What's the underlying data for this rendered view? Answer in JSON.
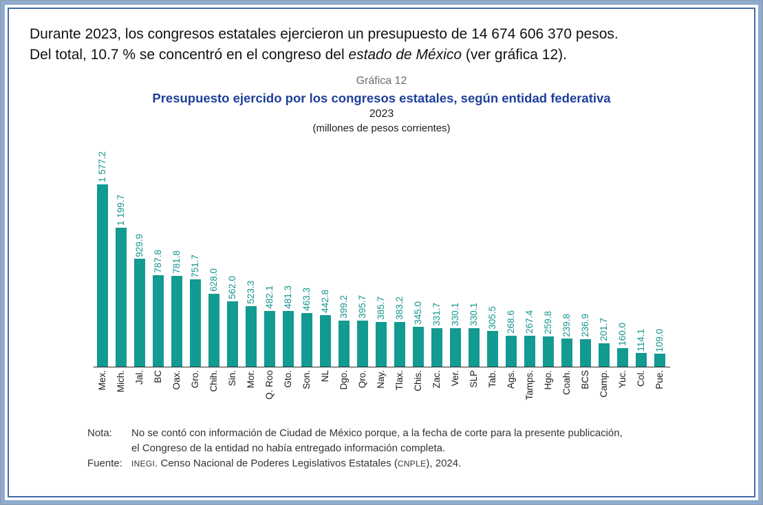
{
  "colors": {
    "bar": "#139a91",
    "value_label": "#13958c",
    "title_blue": "#1f3f99",
    "grafica_gray": "#6b6b6b",
    "frame_band": "#8fabcd",
    "frame_line": "#4668a8",
    "axis": "#2b2b2b",
    "text": "#111111",
    "note_text": "#333333"
  },
  "paragraph": {
    "line1": "Durante 2023, los congresos estatales ejercieron un presupuesto de 14 674 606 370 pesos.",
    "line2_before": "Del total, 10.7 % se concentró en el congreso del ",
    "line2_italic": "estado de México",
    "line2_after": " (ver gráfica 12)."
  },
  "chart": {
    "grafica_label": "Gráfica 12",
    "title": "Presupuesto ejercido por los congresos estatales, según entidad federativa",
    "year": "2023",
    "units": "(millones de pesos corrientes)"
  },
  "chart_data": {
    "type": "bar",
    "title": "Presupuesto ejercido por los congresos estatales, según entidad federativa, 2023",
    "subtitle": "(millones de pesos corrientes)",
    "xlabel": "",
    "ylabel": "",
    "ylim": [
      0,
      1650
    ],
    "grid": false,
    "legend": false,
    "bar_color": "#139a91",
    "value_label_rotation": 90,
    "category_label_rotation": 90,
    "categories": [
      "Mex.",
      "Mich.",
      "Jal.",
      "BC",
      "Oax.",
      "Gro.",
      "Chih.",
      "Sin.",
      "Mor.",
      "Q. Roo",
      "Gto.",
      "Son.",
      "NL",
      "Dgo.",
      "Qro.",
      "Nay.",
      "Tlax.",
      "Chis.",
      "Zac.",
      "Ver.",
      "SLP",
      "Tab.",
      "Ags.",
      "Tamps.",
      "Hgo.",
      "Coah.",
      "BCS",
      "Camp.",
      "Yuc.",
      "Col.",
      "Pue."
    ],
    "values": [
      1577.2,
      1199.7,
      929.9,
      787.8,
      781.8,
      751.7,
      628.0,
      562.0,
      523.3,
      482.1,
      481.3,
      463.3,
      442.8,
      399.2,
      395.7,
      385.7,
      383.2,
      345.0,
      331.7,
      330.1,
      330.1,
      305.5,
      268.6,
      267.4,
      259.8,
      239.8,
      236.9,
      201.7,
      160.0,
      114.1,
      109.0
    ],
    "value_labels": [
      "1 577.2",
      "1 199.7",
      "929.9",
      "787.8",
      "781.8",
      "751.7",
      "628.0",
      "562.0",
      "523.3",
      "482.1",
      "481.3",
      "463.3",
      "442.8",
      "399.2",
      "395.7",
      "385.7",
      "383.2",
      "345.0",
      "331.7",
      "330.1",
      "330.1",
      "305.5",
      "268.6",
      "267.4",
      "259.8",
      "239.8",
      "236.9",
      "201.7",
      "160.0",
      "114.1",
      "109.0"
    ]
  },
  "note": {
    "label": "Nota:",
    "line1": "No se contó con información de Ciudad de México porque, a la fecha de corte para la presente publicación,",
    "line2": "el Congreso de la entidad no había entregado información completa.",
    "fuente_label": "Fuente:",
    "fuente_inegi": "INEGI",
    "fuente_mid": ". Censo Nacional de Poderes Legislativos Estatales (",
    "fuente_cnple": "CNPLE",
    "fuente_end": "), 2024."
  }
}
